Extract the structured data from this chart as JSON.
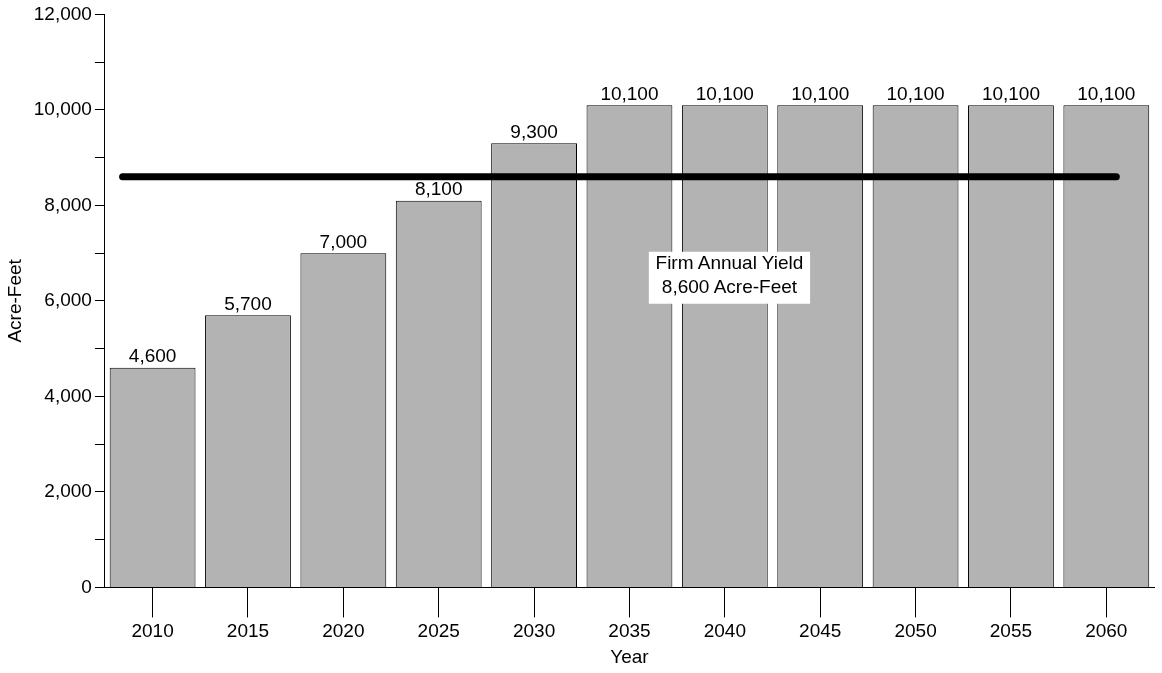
{
  "chart_data": {
    "type": "bar",
    "xlabel": "Year",
    "ylabel": "Acre-Feet",
    "categories": [
      "2010",
      "2015",
      "2020",
      "2025",
      "2030",
      "2035",
      "2040",
      "2045",
      "2050",
      "2055",
      "2060"
    ],
    "values": [
      4600,
      5700,
      7000,
      8100,
      9300,
      10100,
      10100,
      10100,
      10100,
      10100,
      10100
    ],
    "color": "#b3b3b3",
    "ylim": [
      0,
      12000
    ],
    "value_labels": [
      "4,600",
      "5,700",
      "7,000",
      "8,100",
      "9,300",
      "10,100",
      "10,100",
      "10,100",
      "10,100",
      "10,100",
      "10,100"
    ],
    "yticks": [
      0,
      {
        "value": 1000,
        "label": null
      },
      {
        "value": 2000,
        "label": "2,000"
      },
      {
        "value": 3000,
        "label": null
      },
      {
        "value": 4000,
        "label": "4,000"
      },
      {
        "value": 5000,
        "label": null
      },
      {
        "value": 6000,
        "label": "6,000"
      },
      {
        "value": 7000,
        "label": null
      },
      {
        "value": 8000,
        "label": "8,000"
      },
      {
        "value": 9000,
        "label": null
      },
      {
        "value": 10000,
        "label": "10,000"
      },
      {
        "value": 11000,
        "label": null
      },
      {
        "value": 12000,
        "label": "12,000"
      }
    ],
    "ref_lines": [
      {
        "axis": "y",
        "value": 8600,
        "label": "Firm Annual Yield\n8,600 Acre-Feet",
        "color": "#000000"
      }
    ],
    "grid": false,
    "legend": false
  }
}
